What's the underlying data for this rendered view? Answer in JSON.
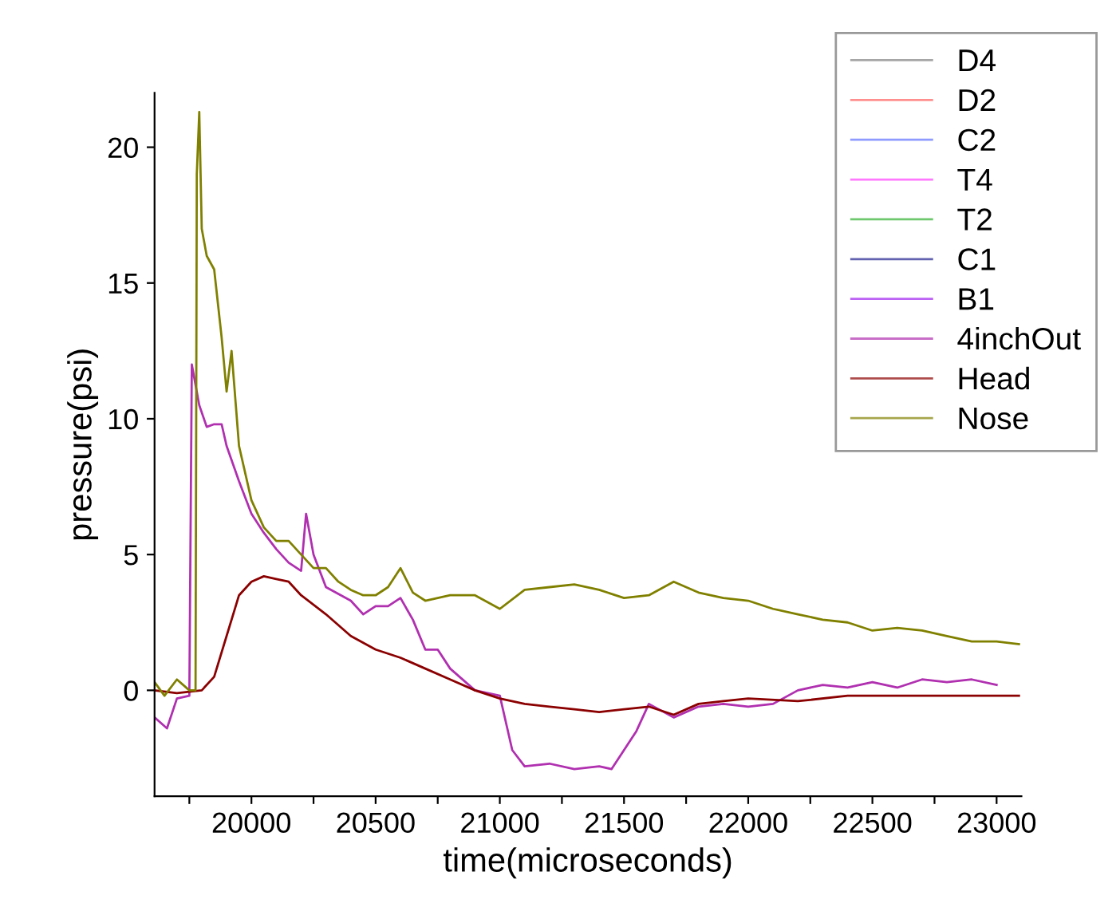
{
  "chart_data": {
    "type": "line",
    "xlabel": "time(microseconds)",
    "ylabel": "pressure(psi)",
    "xlim": [
      19610,
      23100
    ],
    "ylim": [
      -3.9,
      22
    ],
    "xticks": [
      {
        "value": 19750,
        "label": null
      },
      20000,
      {
        "value": 20250,
        "label": null
      },
      20500,
      {
        "value": 20750,
        "label": null
      },
      21000,
      {
        "value": 21250,
        "label": null
      },
      21500,
      {
        "value": 21750,
        "label": null
      },
      22000,
      {
        "value": 22250,
        "label": null
      },
      22500,
      {
        "value": 22750,
        "label": null
      },
      23000
    ],
    "yticks": [
      0,
      5,
      10,
      15,
      20
    ],
    "grid": false,
    "legend": "top right",
    "line_style": "solid",
    "marker": "none",
    "series": [
      {
        "name": "D4",
        "color": "#808080"
      },
      {
        "name": "D2",
        "color": "#ff6060"
      },
      {
        "name": "C2",
        "color": "#6070ff"
      },
      {
        "name": "T4",
        "color": "#ff40ff"
      },
      {
        "name": "T2",
        "color": "#30b030"
      },
      {
        "name": "C1",
        "color": "#202090"
      },
      {
        "name": "B1",
        "color": "#a020f0"
      },
      {
        "name": "4inchOut",
        "color": "#b030b0",
        "x": [
          19610,
          19660,
          19700,
          19750,
          19760,
          19790,
          19820,
          19850,
          19880,
          19900,
          19950,
          20000,
          20050,
          20100,
          20150,
          20200,
          20220,
          20250,
          20300,
          20400,
          20450,
          20500,
          20550,
          20600,
          20650,
          20700,
          20750,
          20800,
          20900,
          21000,
          21050,
          21100,
          21200,
          21300,
          21400,
          21450,
          21550,
          21600,
          21700,
          21800,
          21900,
          22000,
          22100,
          22200,
          22300,
          22400,
          22500,
          22600,
          22700,
          22800,
          22900,
          23000
        ],
        "values": [
          -1,
          -1.4,
          -0.3,
          -0.2,
          12,
          10.5,
          9.7,
          9.8,
          9.8,
          9,
          7.7,
          6.5,
          5.8,
          5.2,
          4.7,
          4.4,
          6.5,
          5,
          3.8,
          3.3,
          2.8,
          3.1,
          3.1,
          3.4,
          2.6,
          1.5,
          1.5,
          0.8,
          0,
          -0.2,
          -2.2,
          -2.8,
          -2.7,
          -2.9,
          -2.8,
          -2.9,
          -1.5,
          -0.5,
          -1,
          -0.6,
          -0.5,
          -0.6,
          -0.5,
          0,
          0.2,
          0.1,
          0.3,
          0.1,
          0.4,
          0.3,
          0.4,
          0.2
        ]
      },
      {
        "name": "Head",
        "color": "#8b0000",
        "x": [
          19610,
          19700,
          19800,
          19850,
          19900,
          19950,
          20000,
          20050,
          20100,
          20150,
          20200,
          20300,
          20400,
          20500,
          20600,
          20700,
          20800,
          20900,
          21000,
          21100,
          21200,
          21300,
          21400,
          21500,
          21600,
          21700,
          21800,
          21900,
          22000,
          22200,
          22400,
          22600,
          22800,
          23000,
          23090
        ],
        "values": [
          0,
          -0.1,
          0,
          0.5,
          2,
          3.5,
          4,
          4.2,
          4.1,
          4,
          3.5,
          2.8,
          2,
          1.5,
          1.2,
          0.8,
          0.4,
          0,
          -0.3,
          -0.5,
          -0.6,
          -0.7,
          -0.8,
          -0.7,
          -0.6,
          -0.9,
          -0.5,
          -0.4,
          -0.3,
          -0.4,
          -0.2,
          -0.2,
          -0.2,
          -0.2,
          -0.2
        ]
      },
      {
        "name": "Nose",
        "color": "#808000",
        "x": [
          19610,
          19650,
          19700,
          19750,
          19775,
          19780,
          19790,
          19800,
          19820,
          19850,
          19880,
          19900,
          19920,
          19950,
          20000,
          20050,
          20100,
          20150,
          20200,
          20250,
          20300,
          20350,
          20400,
          20450,
          20500,
          20550,
          20600,
          20650,
          20700,
          20800,
          20900,
          21000,
          21100,
          21200,
          21300,
          21400,
          21500,
          21600,
          21700,
          21800,
          21900,
          22000,
          22100,
          22200,
          22300,
          22400,
          22500,
          22600,
          22700,
          22800,
          22900,
          23000,
          23090
        ],
        "values": [
          0.3,
          -0.2,
          0.4,
          0,
          0,
          19,
          21.3,
          17,
          16,
          15.5,
          13,
          11,
          12.5,
          9,
          7,
          6,
          5.5,
          5.5,
          5,
          4.5,
          4.5,
          4,
          3.7,
          3.5,
          3.5,
          3.8,
          4.5,
          3.6,
          3.3,
          3.5,
          3.5,
          3,
          3.7,
          3.8,
          3.9,
          3.7,
          3.4,
          3.5,
          4,
          3.6,
          3.4,
          3.3,
          3,
          2.8,
          2.6,
          2.5,
          2.2,
          2.3,
          2.2,
          2,
          1.8,
          1.8,
          1.7
        ]
      }
    ]
  }
}
